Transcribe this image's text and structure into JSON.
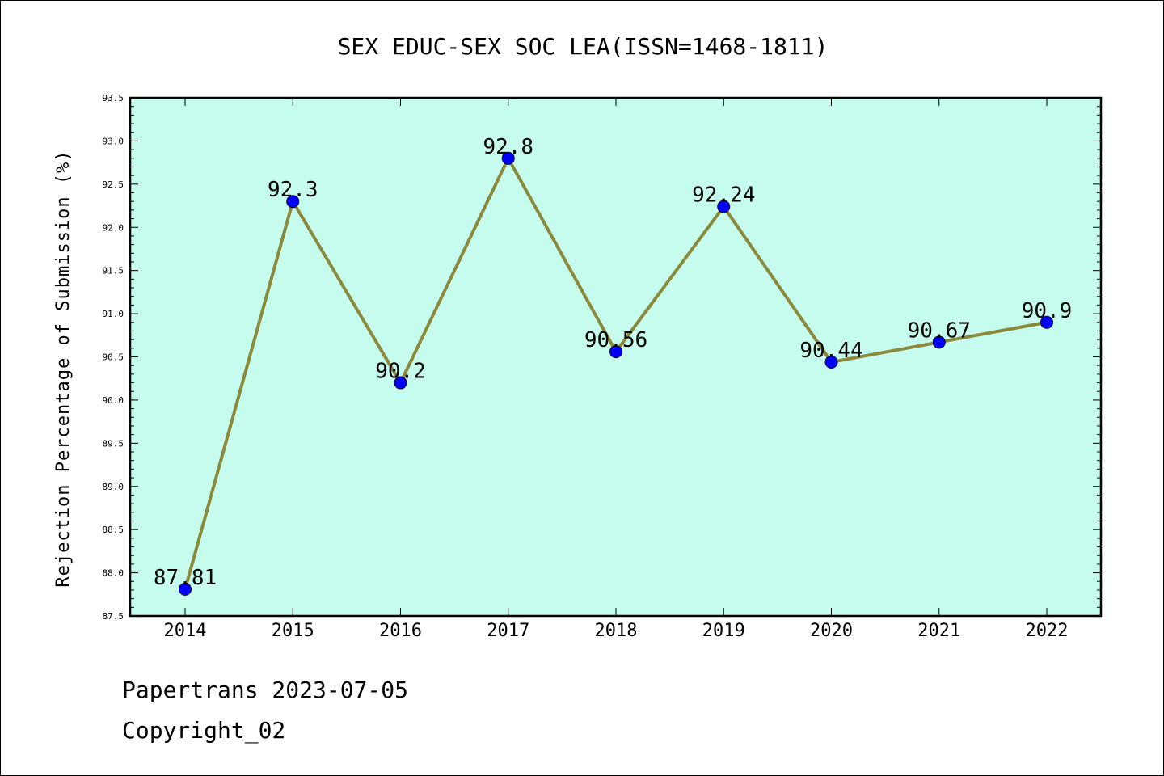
{
  "chart_data": {
    "type": "line",
    "title": "SEX EDUC-SEX SOC LEA(ISSN=1468-1811)",
    "xlabel": "",
    "ylabel": "Rejection Percentage of Submission (%)",
    "categories": [
      "2014",
      "2015",
      "2016",
      "2017",
      "2018",
      "2019",
      "2020",
      "2021",
      "2022"
    ],
    "series": [
      {
        "values": [
          87.81,
          92.3,
          90.2,
          92.8,
          90.56,
          92.24,
          90.44,
          90.67,
          90.9
        ],
        "labels": [
          "87.81",
          "92.3",
          "90.2",
          "92.8",
          "90.56",
          "92.24",
          "90.44",
          "90.67",
          "90.9"
        ]
      }
    ],
    "ylim": [
      87.5,
      93.5
    ],
    "yticks": [
      "87.5",
      "88.0",
      "88.5",
      "89.0",
      "89.5",
      "90.0",
      "90.5",
      "91.0",
      "91.5",
      "92.0",
      "92.5",
      "93.0",
      "93.5"
    ],
    "grid": false,
    "colors": {
      "plot_background": "#c6fcee",
      "line": "#8b8a3c",
      "marker": "#0000ff"
    }
  },
  "footer": {
    "line1": "Papertrans 2023-07-05",
    "line2": "Copyright_02"
  }
}
